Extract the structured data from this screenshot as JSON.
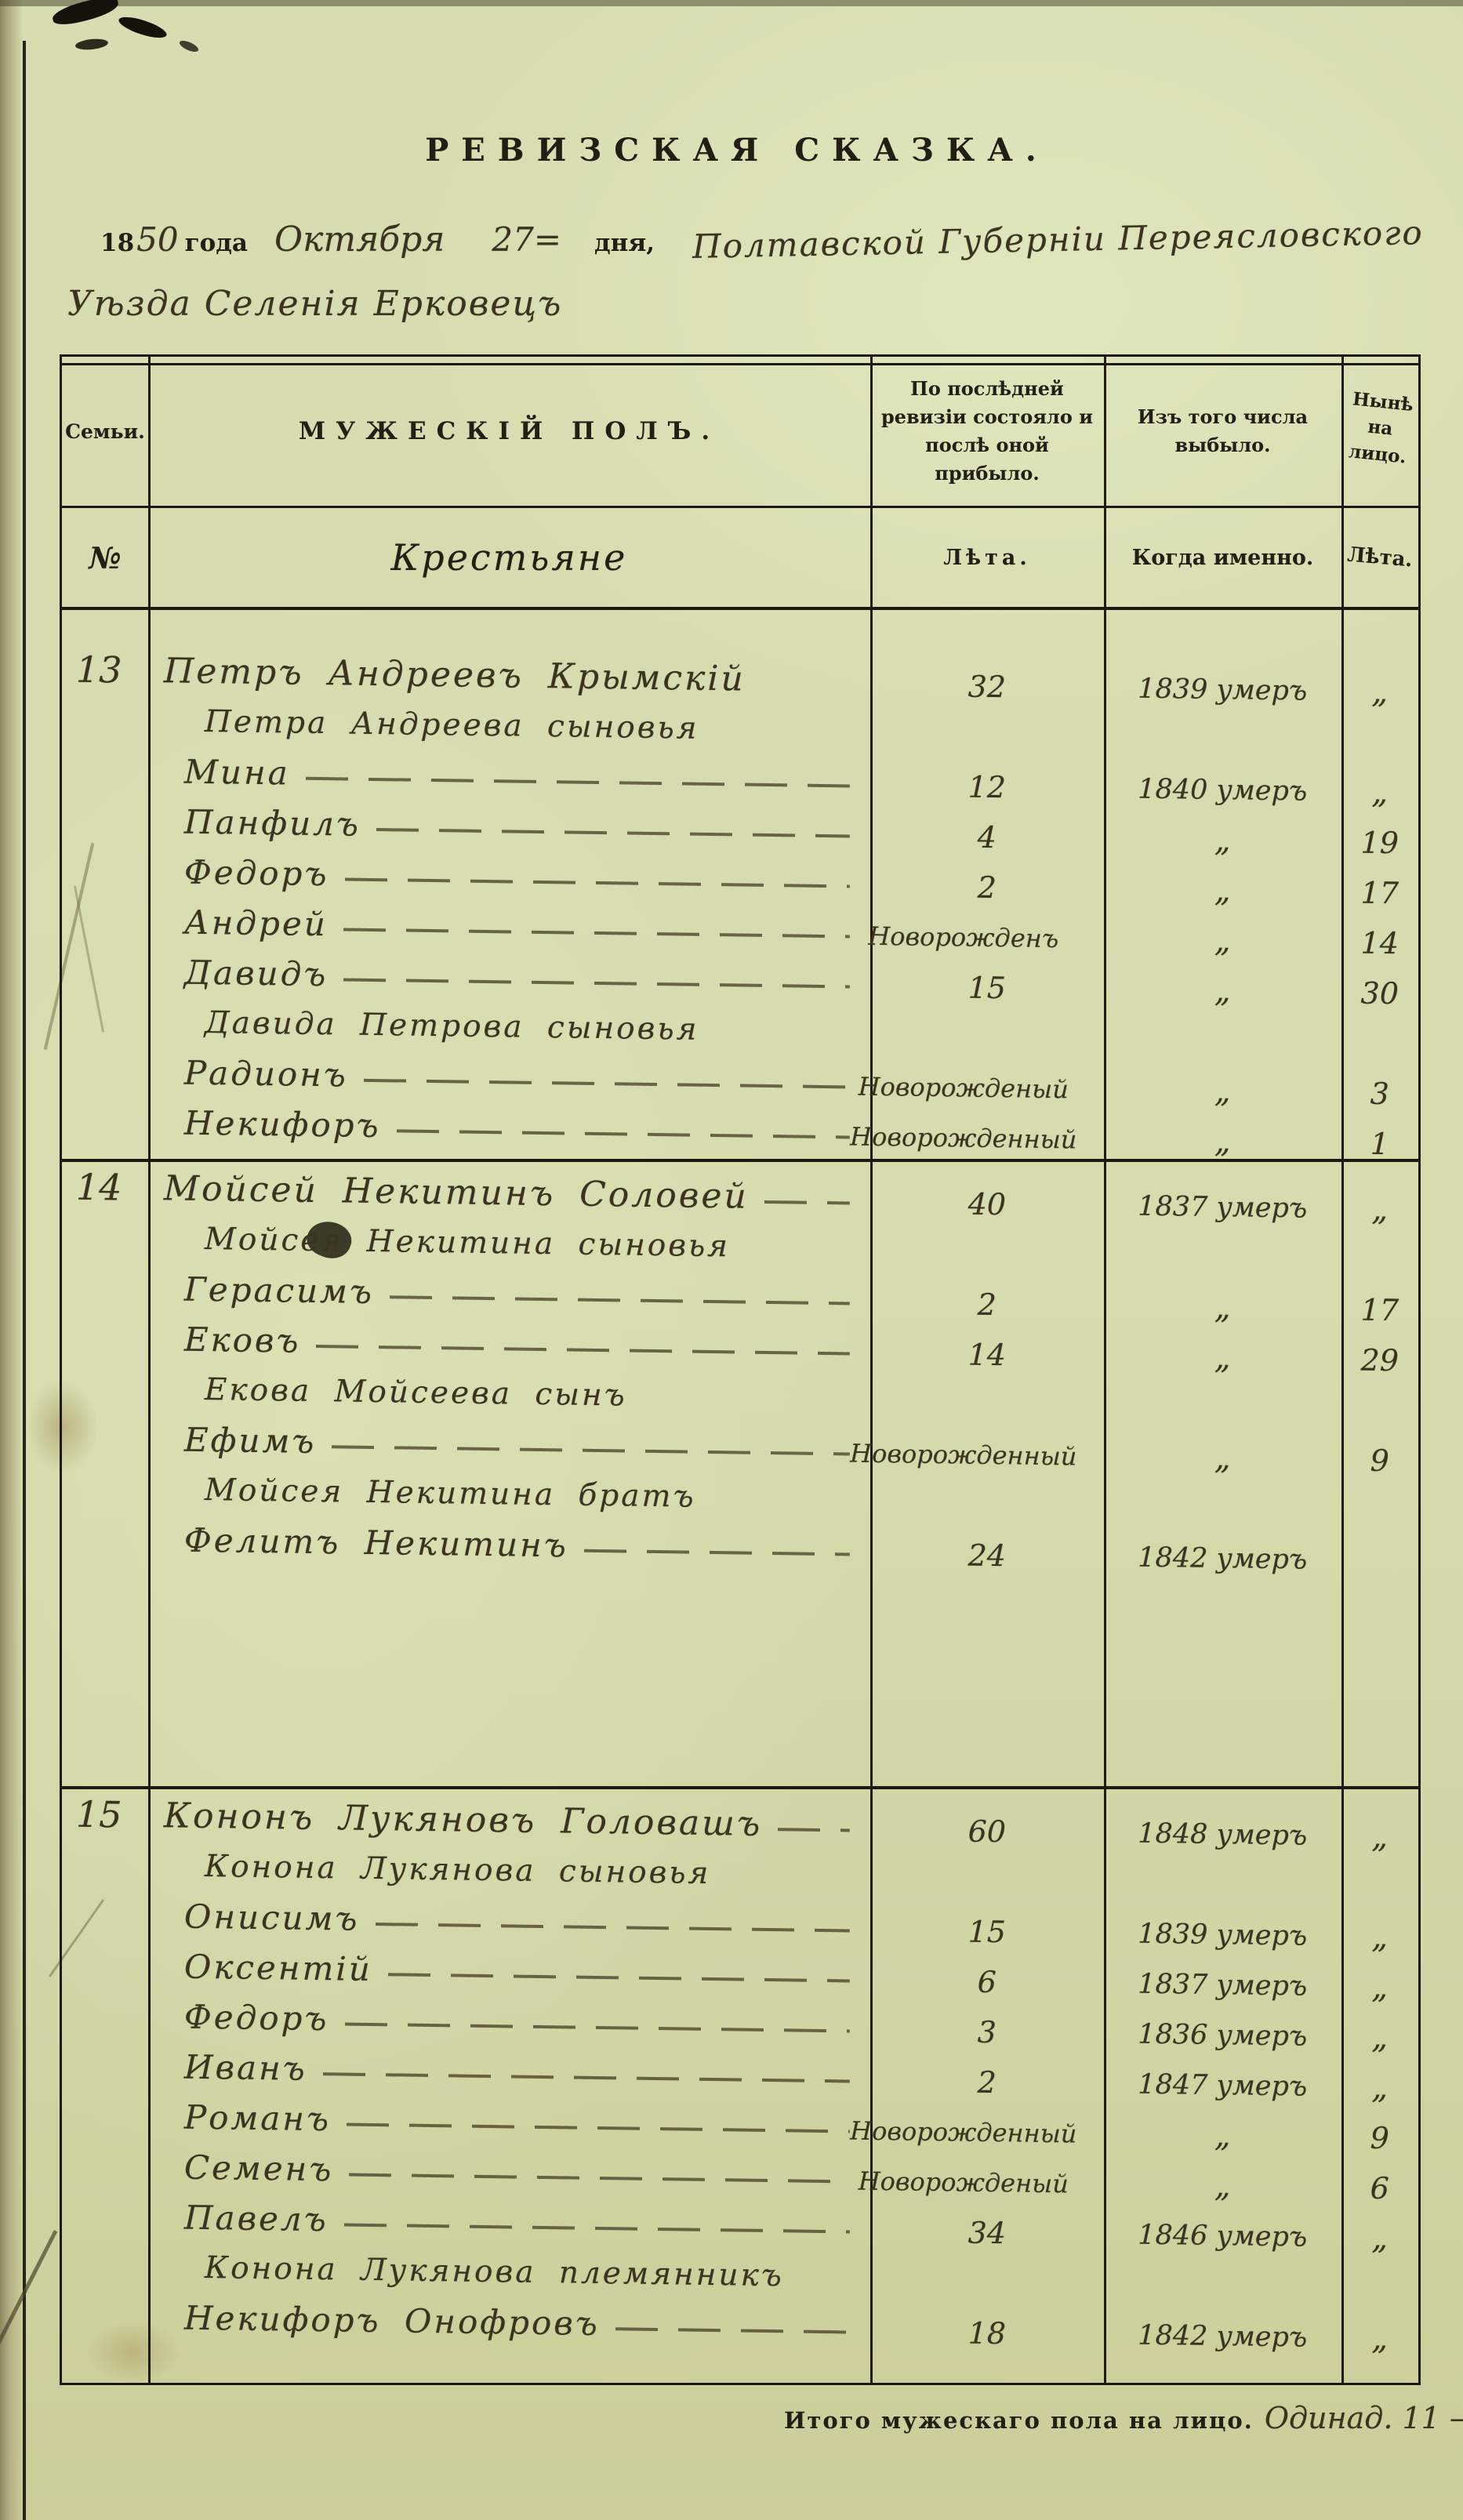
{
  "colors": {
    "paper": "#d6dcae",
    "print_ink": "#221f14",
    "hand_ink": "#3a3320",
    "rule": "#1c1911",
    "page_curl": "#7b7049"
  },
  "title": "РЕВИЗСКАЯ СКАЗКА.",
  "dateline": {
    "printed_18": "18",
    "hand_year": "50",
    "printed_goda": "года",
    "hand_month": "Октября",
    "hand_day": "27=",
    "printed_dnya": "дня,",
    "hand_region": "Полтавской Губерніи Переясловского",
    "hand_line2": "Уѣзда Селенія Ерковецъ"
  },
  "table_header": {
    "family": "Семьи.",
    "male_sex": "МУЖЕСКІЙ ПОЛЪ.",
    "last_revision": "По послѣдней ревизіи состояло и послѣ оной прибыло.",
    "departed": "Изъ того числа выбыло.",
    "now_present": "Нынѣ на лицо.",
    "no_sign": "№",
    "group": "Крестьяне",
    "leta1": "Лѣта.",
    "when_exactly": "Когда именно.",
    "leta2": "Лѣта."
  },
  "families": [
    {
      "number": "13",
      "rows": [
        {
          "kind": "head",
          "name": "Петръ Андреевъ Крымскій",
          "age": "32",
          "when": "1839 умеръ",
          "present": "„",
          "dashes": false
        },
        {
          "kind": "note",
          "name": "Петра Андреева сыновья"
        },
        {
          "kind": "person",
          "name": "Мина",
          "age": "12",
          "when": "1840 умеръ",
          "present": "„",
          "dashes": true
        },
        {
          "kind": "person",
          "name": "Панфилъ",
          "age": "4",
          "when": "„",
          "present": "19",
          "dashes": true
        },
        {
          "kind": "person",
          "name": "Федоръ",
          "age": "2",
          "when": "„",
          "present": "17",
          "dashes": true
        },
        {
          "kind": "person",
          "name": "Андрей",
          "age": "Новорожденъ",
          "when": "„",
          "present": "14",
          "dashes": true
        },
        {
          "kind": "person",
          "name": "Давидъ",
          "age": "15",
          "when": "„",
          "present": "30",
          "dashes": true
        },
        {
          "kind": "note",
          "name": "Давида Петрова сыновья"
        },
        {
          "kind": "person",
          "name": "Радионъ",
          "age": "Новорожденый",
          "when": "„",
          "present": "3",
          "dashes": true
        },
        {
          "kind": "person",
          "name": "Некифоръ",
          "age": "Новорожденный",
          "when": "„",
          "present": "1",
          "dashes": true
        }
      ]
    },
    {
      "number": "14",
      "rows": [
        {
          "kind": "head",
          "name": "Мойсей Некитинъ Соловей",
          "age": "40",
          "when": "1837 умеръ",
          "present": "„",
          "dashes": true
        },
        {
          "kind": "note",
          "name": "Мойсея Некитина сыновья"
        },
        {
          "kind": "person",
          "name": "Герасимъ",
          "age": "2",
          "when": "„",
          "present": "17",
          "dashes": true
        },
        {
          "kind": "person",
          "name": "Ековъ",
          "age": "14",
          "when": "„",
          "present": "29",
          "dashes": true
        },
        {
          "kind": "note",
          "name": "Екова Мойсеева сынъ"
        },
        {
          "kind": "person",
          "name": "Ефимъ",
          "age": "Новорожденный",
          "when": "„",
          "present": "9",
          "dashes": true
        },
        {
          "kind": "note",
          "name": "Мойсея Некитина братъ"
        },
        {
          "kind": "person",
          "name": "Фелитъ Некитинъ",
          "age": "24",
          "when": "1842 умеръ",
          "present": "",
          "dashes": true
        }
      ]
    },
    {
      "number": "15",
      "rows": [
        {
          "kind": "head",
          "name": "Кононъ Лукяновъ Головашъ",
          "age": "60",
          "when": "1848 умеръ",
          "present": "„",
          "dashes": true
        },
        {
          "kind": "note",
          "name": "Конона Лукянова сыновья"
        },
        {
          "kind": "person",
          "name": "Онисимъ",
          "age": "15",
          "when": "1839 умеръ",
          "present": "„",
          "dashes": true
        },
        {
          "kind": "person",
          "name": "Оксентій",
          "age": "6",
          "when": "1837 умеръ",
          "present": "„",
          "dashes": true
        },
        {
          "kind": "person",
          "name": "Федоръ",
          "age": "3",
          "when": "1836 умеръ",
          "present": "„",
          "dashes": true
        },
        {
          "kind": "person",
          "name": "Иванъ",
          "age": "2",
          "when": "1847 умеръ",
          "present": "„",
          "dashes": true
        },
        {
          "kind": "person",
          "name": "Романъ",
          "age": "Новорожденный",
          "when": "„",
          "present": "9",
          "dashes": true
        },
        {
          "kind": "person",
          "name": "Семенъ",
          "age": "Новорожденый",
          "when": "„",
          "present": "6",
          "dashes": true
        },
        {
          "kind": "person",
          "name": "Павелъ",
          "age": "34",
          "when": "1846 умеръ",
          "present": "„",
          "dashes": true
        },
        {
          "kind": "note",
          "name": "Конона Лукянова племянникъ"
        },
        {
          "kind": "person",
          "name": "Некифоръ Онофровъ",
          "age": "18",
          "when": "1842 умеръ",
          "present": "„",
          "dashes": true
        }
      ]
    }
  ],
  "totals": {
    "printed": "Итого мужескаго пола на лицо.",
    "hand": "Одинад. 11 –"
  }
}
